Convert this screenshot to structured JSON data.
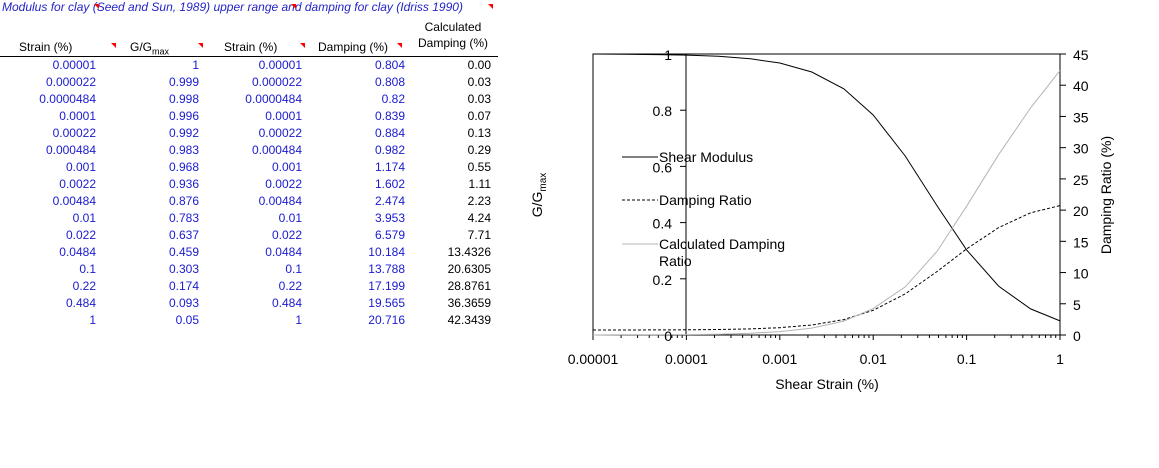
{
  "sheet": {
    "title": "Modulus for clay (Seed and Sun, 1989) upper range and damping for clay (Idriss 1990)",
    "headers": {
      "strain1": "Strain (%)",
      "ggmax_main": "G/G",
      "ggmax_sub": "max",
      "strain2": "Strain (%)",
      "damping": "Damping (%)",
      "calc_line1": "Calculated",
      "calc_line2": "Damping (%)"
    },
    "rows": [
      {
        "strain1": "0.00001",
        "ggmax": "1",
        "strain2": "0.00001",
        "damping": "0.804",
        "calc": "0.00"
      },
      {
        "strain1": "0.000022",
        "ggmax": "0.999",
        "strain2": "0.000022",
        "damping": "0.808",
        "calc": "0.03"
      },
      {
        "strain1": "0.0000484",
        "ggmax": "0.998",
        "strain2": "0.0000484",
        "damping": "0.82",
        "calc": "0.03"
      },
      {
        "strain1": "0.0001",
        "ggmax": "0.996",
        "strain2": "0.0001",
        "damping": "0.839",
        "calc": "0.07"
      },
      {
        "strain1": "0.00022",
        "ggmax": "0.992",
        "strain2": "0.00022",
        "damping": "0.884",
        "calc": "0.13"
      },
      {
        "strain1": "0.000484",
        "ggmax": "0.983",
        "strain2": "0.000484",
        "damping": "0.982",
        "calc": "0.29"
      },
      {
        "strain1": "0.001",
        "ggmax": "0.968",
        "strain2": "0.001",
        "damping": "1.174",
        "calc": "0.55"
      },
      {
        "strain1": "0.0022",
        "ggmax": "0.936",
        "strain2": "0.0022",
        "damping": "1.602",
        "calc": "1.11"
      },
      {
        "strain1": "0.00484",
        "ggmax": "0.876",
        "strain2": "0.00484",
        "damping": "2.474",
        "calc": "2.23"
      },
      {
        "strain1": "0.01",
        "ggmax": "0.783",
        "strain2": "0.01",
        "damping": "3.953",
        "calc": "4.24"
      },
      {
        "strain1": "0.022",
        "ggmax": "0.637",
        "strain2": "0.022",
        "damping": "6.579",
        "calc": "7.71"
      },
      {
        "strain1": "0.0484",
        "ggmax": "0.459",
        "strain2": "0.0484",
        "damping": "10.184",
        "calc": "13.4326"
      },
      {
        "strain1": "0.1",
        "ggmax": "0.303",
        "strain2": "0.1",
        "damping": "13.788",
        "calc": "20.6305"
      },
      {
        "strain1": "0.22",
        "ggmax": "0.174",
        "strain2": "0.22",
        "damping": "17.199",
        "calc": "28.8761"
      },
      {
        "strain1": "0.484",
        "ggmax": "0.093",
        "strain2": "0.484",
        "damping": "19.565",
        "calc": "36.3659"
      },
      {
        "strain1": "1",
        "ggmax": "0.05",
        "strain2": "1",
        "damping": "20.716",
        "calc": "42.3439"
      }
    ],
    "colors": {
      "blue_text": "#1a1ad0",
      "comment_marker": "#ff0000"
    }
  },
  "chart_data": {
    "type": "line",
    "xscale": "log",
    "xlabel": "Shear Strain (%)",
    "ylabel_left_main": "G/G",
    "ylabel_left_sub": "max",
    "ylabel_right": "Damping Ratio (%)",
    "xlim": [
      1e-05,
      1
    ],
    "ylim_left": [
      0,
      1
    ],
    "ylim_right": [
      0,
      45
    ],
    "x_tick_labels": [
      "0.00001",
      "0.0001",
      "0.001",
      "0.01",
      "0.1",
      "1"
    ],
    "y_left_tick_labels": [
      "0",
      "0.2",
      "0.4",
      "0.6",
      "0.8",
      "1"
    ],
    "y_right_tick_labels": [
      "0",
      "5",
      "10",
      "15",
      "20",
      "25",
      "30",
      "35",
      "40",
      "45"
    ],
    "grid": false,
    "legend_position": "left-inside",
    "x": [
      1e-05,
      2.2e-05,
      4.84e-05,
      0.0001,
      0.00022,
      0.000484,
      0.001,
      0.0022,
      0.00484,
      0.01,
      0.022,
      0.0484,
      0.1,
      0.22,
      0.484,
      1
    ],
    "series": [
      {
        "name": "Shear Modulus",
        "axis": "left",
        "style": "solid",
        "color": "#000000",
        "values": [
          1,
          0.999,
          0.998,
          0.996,
          0.992,
          0.983,
          0.968,
          0.936,
          0.876,
          0.783,
          0.637,
          0.459,
          0.303,
          0.174,
          0.093,
          0.05
        ]
      },
      {
        "name": "Damping Ratio",
        "axis": "right",
        "style": "dashed",
        "color": "#000000",
        "values": [
          0.804,
          0.808,
          0.82,
          0.839,
          0.884,
          0.982,
          1.174,
          1.602,
          2.474,
          3.953,
          6.579,
          10.184,
          13.788,
          17.199,
          19.565,
          20.716
        ]
      },
      {
        "name": "Calculated Damping Ratio",
        "axis": "right",
        "style": "solid",
        "color": "#b4b4b4",
        "values": [
          0.0,
          0.03,
          0.03,
          0.07,
          0.13,
          0.29,
          0.55,
          1.11,
          2.23,
          4.24,
          7.71,
          13.4326,
          20.6305,
          28.8761,
          36.3659,
          42.3439
        ]
      }
    ],
    "legend": [
      {
        "line1": "Shear Modulus",
        "line2": ""
      },
      {
        "line1": "Damping Ratio",
        "line2": ""
      },
      {
        "line1": "Calculated Damping",
        "line2": "Ratio"
      }
    ]
  }
}
